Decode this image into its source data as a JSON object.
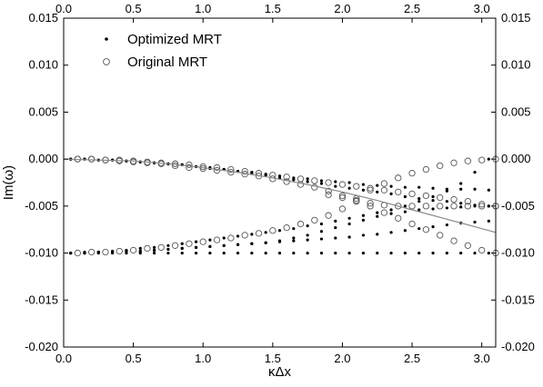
{
  "chart_data": {
    "type": "scatter",
    "title": "",
    "xlabel": "κΔx",
    "ylabel": "Im(ω)",
    "xlim": [
      0.0,
      3.1
    ],
    "ylim": [
      -0.02,
      0.015
    ],
    "xticks": [
      0.0,
      0.5,
      1.0,
      1.5,
      2.0,
      2.5,
      3.0
    ],
    "yticks": [
      -0.02,
      -0.015,
      -0.01,
      -0.005,
      0.0,
      0.005,
      0.01,
      0.015
    ],
    "xtick_labels": [
      "0.0",
      "0.5",
      "1.0",
      "1.5",
      "2.0",
      "2.5",
      "3.0"
    ],
    "ytick_labels": [
      "-0.020",
      "-0.015",
      "-0.010",
      "-0.005",
      "0.000",
      "0.005",
      "0.010",
      "0.015"
    ],
    "grid": false,
    "mirror_axes": true,
    "legend": {
      "placement": "top-left"
    },
    "series": [
      {
        "name": "Optimized MRT",
        "marker": "dot",
        "color": "#000000",
        "curves": [
          {
            "x": [
              0.05,
              0.15,
              0.25,
              0.35,
              0.45,
              0.55,
              0.65,
              0.75,
              0.85,
              0.95,
              1.05,
              1.15,
              1.25,
              1.35,
              1.45,
              1.55,
              1.65,
              1.75,
              1.85,
              1.95,
              2.05,
              2.15,
              2.25,
              2.35,
              2.45,
              2.55,
              2.65,
              2.75,
              2.85,
              2.95,
              3.05
            ],
            "y": [
              -0.0,
              -0.0,
              -0.0001,
              -0.0001,
              -0.0002,
              -0.0003,
              -0.0004,
              -0.0005,
              -0.0006,
              -0.0008,
              -0.0009,
              -0.0011,
              -0.0013,
              -0.0014,
              -0.0016,
              -0.0018,
              -0.002,
              -0.0021,
              -0.0023,
              -0.0024,
              -0.0025,
              -0.0027,
              -0.0028,
              -0.0029,
              -0.003,
              -0.003,
              -0.0031,
              -0.0032,
              -0.0032,
              -0.0032,
              -0.0033
            ]
          },
          {
            "x": [
              0.05,
              0.15,
              0.25,
              0.35,
              0.45,
              0.55,
              0.65,
              0.75,
              0.85,
              0.95,
              1.05,
              1.15,
              1.25,
              1.35,
              1.45,
              1.55,
              1.65,
              1.75,
              1.85,
              1.95,
              2.05,
              2.15,
              2.25,
              2.35,
              2.45,
              2.55,
              2.65,
              2.75,
              2.85,
              2.95,
              3.05
            ],
            "y": [
              -0.0,
              -0.0,
              -0.0001,
              -0.0001,
              -0.0002,
              -0.0003,
              -0.0004,
              -0.0005,
              -0.0006,
              -0.0008,
              -0.001,
              -0.0011,
              -0.0013,
              -0.0015,
              -0.0017,
              -0.002,
              -0.0022,
              -0.0024,
              -0.0026,
              -0.0029,
              -0.0031,
              -0.0033,
              -0.0035,
              -0.0037,
              -0.004,
              -0.0042,
              -0.0044,
              -0.0045,
              -0.0047,
              -0.0049,
              -0.005
            ]
          },
          {
            "x": [
              0.05,
              0.15,
              0.25,
              0.35,
              0.45,
              0.55,
              0.65,
              0.75,
              0.85,
              0.95,
              1.05,
              1.15,
              1.25,
              1.35,
              1.45,
              1.55,
              1.65,
              1.75,
              1.85,
              1.95,
              2.05,
              2.15,
              2.25,
              2.35,
              2.45,
              2.55,
              2.65,
              2.75,
              2.85,
              2.95,
              3.05
            ],
            "y": [
              -0.01,
              -0.01,
              -0.01,
              -0.01,
              -0.01,
              -0.01,
              -0.01,
              -0.01,
              -0.01,
              -0.01,
              -0.01,
              -0.01,
              -0.01,
              -0.01,
              -0.01,
              -0.01,
              -0.01,
              -0.01,
              -0.01,
              -0.01,
              -0.01,
              -0.01,
              -0.01,
              -0.01,
              -0.01,
              -0.01,
              -0.01,
              -0.01,
              -0.01,
              -0.01,
              -0.01
            ]
          },
          {
            "x": [
              0.05,
              0.15,
              0.25,
              0.35,
              0.45,
              0.55,
              0.65,
              0.75,
              0.85,
              0.95,
              1.05,
              1.15,
              1.25,
              1.35,
              1.45,
              1.55,
              1.65,
              1.75,
              1.85,
              1.95,
              2.05,
              2.15,
              2.25,
              2.35,
              2.45,
              2.55,
              2.65,
              2.75,
              2.85,
              2.95,
              3.05
            ],
            "y": [
              -0.01,
              -0.01,
              -0.0099,
              -0.0099,
              -0.0098,
              -0.0098,
              -0.0097,
              -0.0096,
              -0.0095,
              -0.0094,
              -0.0093,
              -0.0092,
              -0.0091,
              -0.009,
              -0.0089,
              -0.0088,
              -0.0087,
              -0.0086,
              -0.0085,
              -0.0084,
              -0.0083,
              -0.0081,
              -0.008,
              -0.0078,
              -0.0076,
              -0.0074,
              -0.0072,
              -0.007,
              -0.0068,
              -0.0067,
              -0.0066
            ]
          },
          {
            "x": [
              0.05,
              0.15,
              0.25,
              0.35,
              0.45,
              0.55,
              0.65,
              0.75,
              0.85,
              0.95,
              1.05,
              1.15,
              1.25,
              1.35,
              1.45,
              1.55,
              1.65,
              1.75,
              1.85,
              1.95,
              2.05,
              2.15,
              2.25,
              2.35,
              2.45,
              2.55,
              2.65,
              2.75,
              2.85,
              2.95,
              3.05
            ],
            "y": [
              -0.01,
              -0.0099,
              -0.0099,
              -0.0098,
              -0.0097,
              -0.0095,
              -0.0094,
              -0.0092,
              -0.009,
              -0.0088,
              -0.0086,
              -0.0084,
              -0.0082,
              -0.008,
              -0.0078,
              -0.0076,
              -0.0074,
              -0.0071,
              -0.0069,
              -0.0066,
              -0.0063,
              -0.006,
              -0.0057,
              -0.0054,
              -0.005,
              -0.0045,
              -0.004,
              -0.0034,
              -0.0026,
              -0.0014,
              -0.0
            ]
          },
          {
            "x": [
              0.05,
              0.15,
              0.25,
              0.35,
              0.45,
              0.55,
              0.65,
              0.75,
              0.85,
              0.95,
              1.05,
              1.15,
              1.25,
              1.35,
              1.45,
              1.55,
              1.65,
              1.75,
              1.85,
              1.95,
              2.05,
              2.15,
              2.25,
              2.35,
              2.45,
              2.55,
              2.65,
              2.75,
              2.85,
              2.95,
              3.05
            ],
            "y": [
              -0.01,
              -0.01,
              -0.0099,
              -0.0099,
              -0.0098,
              -0.0098,
              -0.0097,
              -0.0096,
              -0.0095,
              -0.0094,
              -0.0093,
              -0.0092,
              -0.0091,
              -0.009,
              -0.0089,
              -0.0087,
              -0.0084,
              -0.0081,
              -0.0077,
              -0.0073,
              -0.0069,
              -0.0065,
              -0.0061,
              -0.0058,
              -0.0056,
              -0.0054,
              -0.0053,
              -0.0052,
              -0.0051,
              -0.005,
              -0.005
            ]
          }
        ]
      },
      {
        "name": "Original MRT",
        "marker": "open-circle",
        "color": "#555555",
        "curves": [
          {
            "x": [
              0.1,
              0.2,
              0.3,
              0.4,
              0.5,
              0.6,
              0.7,
              0.8,
              0.9,
              1.0,
              1.1,
              1.2,
              1.3,
              1.4,
              1.5,
              1.6,
              1.7,
              1.8,
              1.9,
              2.0,
              2.1,
              2.2,
              2.3,
              2.4,
              2.5,
              2.6,
              2.7,
              2.8,
              2.9,
              3.0,
              3.1
            ],
            "y": [
              -0.0,
              -0.0,
              -0.0001,
              -0.0002,
              -0.0003,
              -0.0004,
              -0.0005,
              -0.0007,
              -0.0009,
              -0.001,
              -0.0012,
              -0.0014,
              -0.0016,
              -0.0018,
              -0.0021,
              -0.0024,
              -0.0027,
              -0.003,
              -0.0034,
              -0.0039,
              -0.0044,
              -0.005,
              -0.0057,
              -0.0063,
              -0.0069,
              -0.0075,
              -0.0081,
              -0.0087,
              -0.0092,
              -0.0097,
              -0.01
            ]
          },
          {
            "x": [
              0.1,
              0.2,
              0.3,
              0.4,
              0.5,
              0.6,
              0.7,
              0.8,
              0.9,
              1.0,
              1.1,
              1.2,
              1.3,
              1.4,
              1.5,
              1.6,
              1.7,
              1.8,
              1.9,
              2.0,
              2.1,
              2.2,
              2.3,
              2.4,
              2.5,
              2.6,
              2.7,
              2.8,
              2.9,
              3.0,
              3.1
            ],
            "y": [
              -0.01,
              -0.0099,
              -0.0099,
              -0.0098,
              -0.0097,
              -0.0095,
              -0.0094,
              -0.0092,
              -0.009,
              -0.0088,
              -0.0086,
              -0.0084,
              -0.0081,
              -0.0079,
              -0.0076,
              -0.0073,
              -0.0069,
              -0.0065,
              -0.006,
              -0.0053,
              -0.0042,
              -0.0033,
              -0.0026,
              -0.002,
              -0.0015,
              -0.0011,
              -0.0007,
              -0.0004,
              -0.0002,
              -0.0001,
              -0.0
            ]
          },
          {
            "x": [
              1.9,
              2.0,
              2.1,
              2.2,
              2.3,
              2.4,
              2.5,
              2.6,
              2.7,
              2.8,
              2.9,
              3.0,
              3.1
            ],
            "y": [
              -0.0038,
              -0.0041,
              -0.0045,
              -0.0047,
              -0.0049,
              -0.005,
              -0.005,
              -0.005,
              -0.005,
              -0.005,
              -0.005,
              -0.005,
              -0.005
            ]
          },
          {
            "x": [
              0.1,
              0.2,
              0.3,
              0.4,
              0.5,
              0.6,
              0.7,
              0.8,
              0.9,
              1.0,
              1.1,
              1.2,
              1.3,
              1.4,
              1.5,
              1.6,
              1.7,
              1.8,
              1.9,
              2.0,
              2.1,
              2.2,
              2.3,
              2.4,
              2.5,
              2.6,
              2.7,
              2.8,
              2.9,
              3.0,
              3.1
            ],
            "y": [
              -0.0,
              -0.0,
              -0.0001,
              -0.0001,
              -0.0002,
              -0.0003,
              -0.0004,
              -0.0005,
              -0.0006,
              -0.0008,
              -0.0009,
              -0.0011,
              -0.0013,
              -0.0015,
              -0.0017,
              -0.0019,
              -0.0021,
              -0.0023,
              -0.0025,
              -0.0027,
              -0.0029,
              -0.0031,
              -0.0033,
              -0.0035,
              -0.0037,
              -0.0039,
              -0.0041,
              -0.0043,
              -0.0045,
              -0.0048,
              -0.005
            ]
          }
        ]
      },
      {
        "marker": "line",
        "color": "#8a8a8a",
        "x": [
          0.0,
          0.25,
          0.5,
          0.75,
          1.0,
          1.25,
          1.5,
          1.75,
          2.0,
          2.25,
          2.5,
          2.75,
          3.0,
          3.1
        ],
        "y": [
          0.0,
          -0.0001,
          -0.0002,
          -0.0005,
          -0.0009,
          -0.0014,
          -0.002,
          -0.0027,
          -0.0035,
          -0.0044,
          -0.0054,
          -0.0064,
          -0.0074,
          -0.0078
        ]
      }
    ]
  }
}
